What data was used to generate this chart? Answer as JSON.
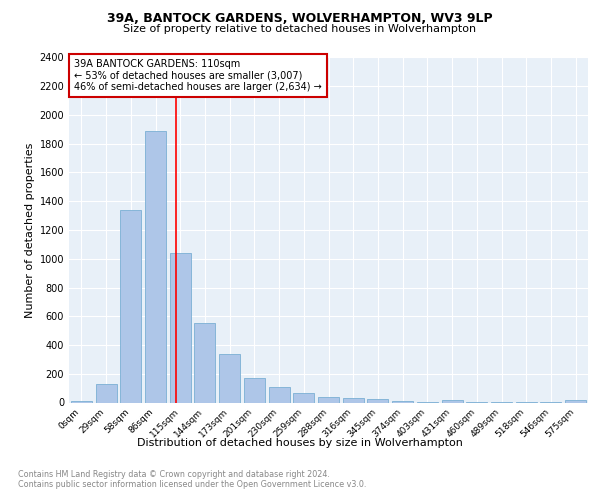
{
  "title1": "39A, BANTOCK GARDENS, WOLVERHAMPTON, WV3 9LP",
  "title2": "Size of property relative to detached houses in Wolverhampton",
  "xlabel": "Distribution of detached houses by size in Wolverhampton",
  "ylabel": "Number of detached properties",
  "bar_color": "#aec6e8",
  "bar_edge_color": "#7bafd4",
  "categories": [
    "0sqm",
    "29sqm",
    "58sqm",
    "86sqm",
    "115sqm",
    "144sqm",
    "173sqm",
    "201sqm",
    "230sqm",
    "259sqm",
    "288sqm",
    "316sqm",
    "345sqm",
    "374sqm",
    "403sqm",
    "431sqm",
    "460sqm",
    "489sqm",
    "518sqm",
    "546sqm",
    "575sqm"
  ],
  "values": [
    10,
    130,
    1340,
    1890,
    1040,
    550,
    335,
    170,
    110,
    65,
    40,
    30,
    22,
    12,
    2,
    18,
    2,
    2,
    2,
    2,
    15
  ],
  "property_line_bin": 3.82,
  "annotation_text": "39A BANTOCK GARDENS: 110sqm\n← 53% of detached houses are smaller (3,007)\n46% of semi-detached houses are larger (2,634) →",
  "annotation_box_color": "#ffffff",
  "annotation_box_edge_color": "#cc0000",
  "ylim": [
    0,
    2400
  ],
  "yticks": [
    0,
    200,
    400,
    600,
    800,
    1000,
    1200,
    1400,
    1600,
    1800,
    2000,
    2200,
    2400
  ],
  "footer1": "Contains HM Land Registry data © Crown copyright and database right 2024.",
  "footer2": "Contains public sector information licensed under the Open Government Licence v3.0.",
  "background_color": "#e8f0f8",
  "figure_bg": "#ffffff",
  "grid_color": "#ffffff"
}
